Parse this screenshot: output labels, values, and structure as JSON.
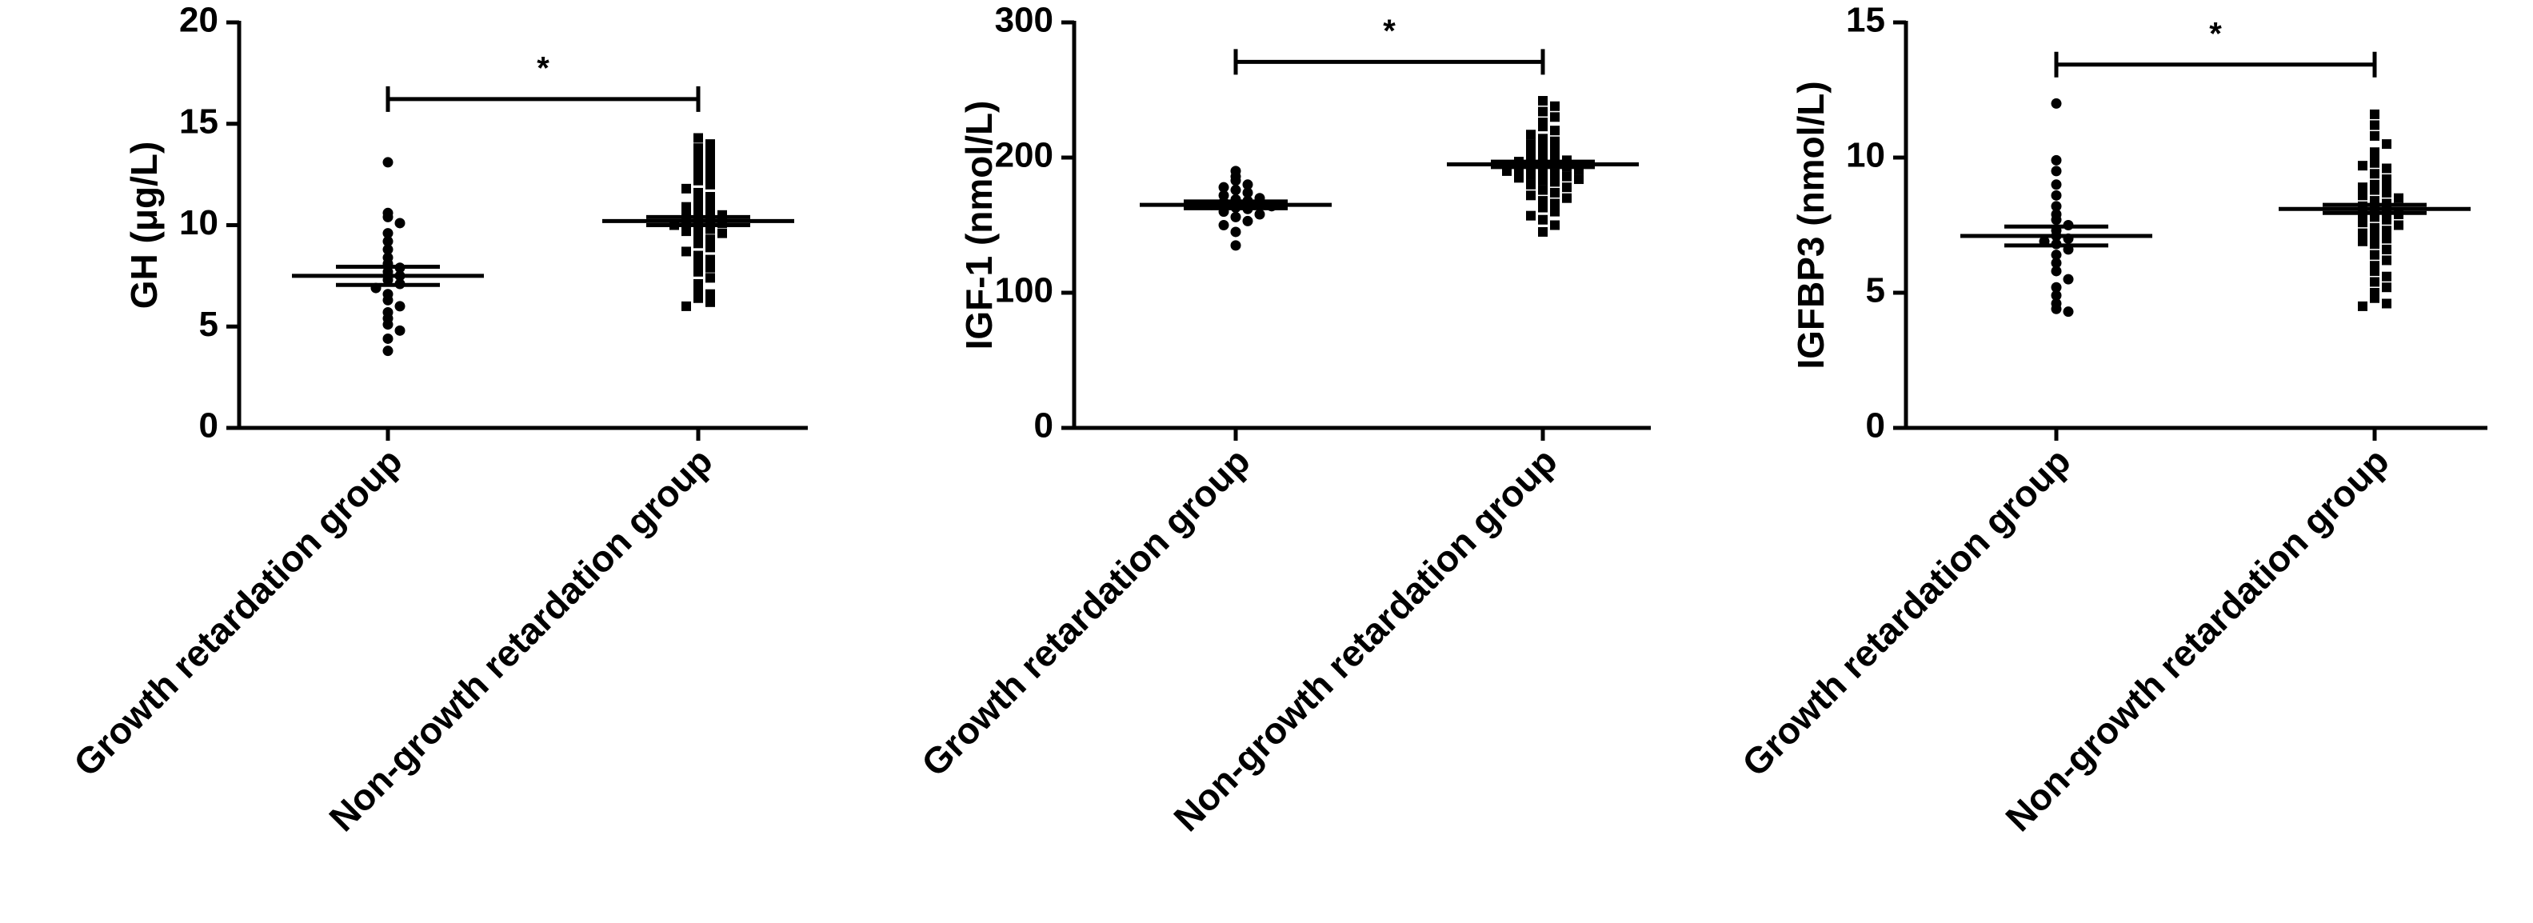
{
  "chart_data": [
    {
      "type": "dot",
      "ylabel": "GH (μg/L)",
      "categories": [
        "Growth retardation group",
        "Non-growth retardation group"
      ],
      "ylim": [
        0,
        20
      ],
      "yticks": [
        0,
        5,
        10,
        15,
        20
      ],
      "significance": "*",
      "groups": [
        {
          "marker": "circle",
          "mean": 7.5,
          "sem": 0.45,
          "values": [
            13.1,
            10.6,
            10.4,
            10.1,
            9.6,
            9.2,
            8.8,
            8.4,
            8.1,
            7.9,
            7.7,
            7.5,
            7.3,
            7.1,
            6.9,
            6.6,
            6.3,
            6.0,
            5.7,
            5.4,
            5.1,
            4.8,
            4.4,
            3.8
          ]
        },
        {
          "marker": "square",
          "mean": 10.2,
          "sem": 0.2,
          "values": [
            14.3,
            14.0,
            13.8,
            13.6,
            13.4,
            13.2,
            13.0,
            12.8,
            12.6,
            12.4,
            12.2,
            12.0,
            11.8,
            11.6,
            11.4,
            11.2,
            11.0,
            10.9,
            10.8,
            10.7,
            10.6,
            10.5,
            10.4,
            10.3,
            10.2,
            10.1,
            10.0,
            9.9,
            9.8,
            9.7,
            9.6,
            9.5,
            9.3,
            9.1,
            8.9,
            8.7,
            8.5,
            8.3,
            8.1,
            7.9,
            7.7,
            7.4,
            7.1,
            6.8,
            6.6,
            6.4,
            6.2,
            6.0
          ]
        }
      ]
    },
    {
      "type": "dot",
      "ylabel": "IGF-1 (nmol/L)",
      "categories": [
        "Growth retardation group",
        "Non-growth retardation group"
      ],
      "ylim": [
        0,
        300
      ],
      "yticks": [
        0,
        100,
        200,
        300
      ],
      "significance": "*",
      "groups": [
        {
          "marker": "circle",
          "mean": 165,
          "sem": 2.5,
          "values": [
            190,
            186,
            183,
            180,
            178,
            176,
            174,
            172,
            170,
            169,
            168,
            167,
            166,
            165,
            164,
            163,
            162,
            160,
            158,
            156,
            153,
            150,
            145,
            135
          ]
        },
        {
          "marker": "square",
          "mean": 195,
          "sem": 2,
          "values": [
            242,
            238,
            234,
            230,
            226,
            223,
            220,
            217,
            214,
            212,
            210,
            208,
            206,
            204,
            202,
            200,
            199,
            198,
            197,
            196,
            195,
            194,
            193,
            192,
            191,
            190,
            189,
            188,
            187,
            186,
            185,
            184,
            183,
            182,
            180,
            178,
            176,
            174,
            172,
            170,
            168,
            166,
            163,
            160,
            157,
            154,
            150,
            145
          ]
        }
      ]
    },
    {
      "type": "dot",
      "ylabel": "IGFBP3 (nmol/L)",
      "categories": [
        "Growth retardation group",
        "Non-growth retardation group"
      ],
      "ylim": [
        0,
        15
      ],
      "yticks": [
        0,
        5,
        10,
        15
      ],
      "significance": "*",
      "groups": [
        {
          "marker": "circle",
          "mean": 7.1,
          "sem": 0.35,
          "values": [
            12.0,
            9.9,
            9.5,
            9.0,
            8.6,
            8.2,
            7.9,
            7.7,
            7.5,
            7.3,
            7.1,
            7.0,
            6.8,
            6.6,
            6.4,
            6.1,
            5.8,
            5.5,
            5.2,
            4.9,
            4.6,
            4.4,
            4.3,
            6.9
          ]
        },
        {
          "marker": "square",
          "mean": 8.1,
          "sem": 0.15,
          "values": [
            11.6,
            11.2,
            10.8,
            10.5,
            10.2,
            10.0,
            9.8,
            9.6,
            9.4,
            9.2,
            9.0,
            8.9,
            8.8,
            8.7,
            8.6,
            8.5,
            8.4,
            8.3,
            8.2,
            8.1,
            8.0,
            7.9,
            7.8,
            7.7,
            7.6,
            7.5,
            7.4,
            7.3,
            7.2,
            7.1,
            7.0,
            6.9,
            6.8,
            6.6,
            6.4,
            6.2,
            6.0,
            5.8,
            5.6,
            5.4,
            5.2,
            5.0,
            4.8,
            4.6,
            4.5,
            9.7,
            8.9,
            7.9
          ]
        }
      ]
    }
  ]
}
